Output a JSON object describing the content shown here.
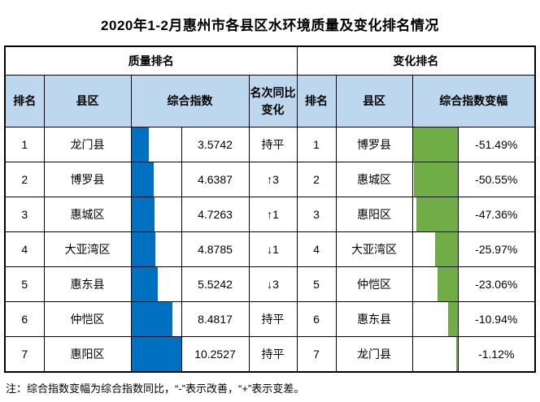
{
  "title": "2020年1-2月惠州市各县区水环境质量及变化排名情况",
  "note": "注：综合指数变幅为综合指数同比，“-”表示改善，“+”表示变差。",
  "colors": {
    "header_fill": "#BDD7EE",
    "quality_bar_blue": "#0070C0",
    "change_bar_green": "#70AD47",
    "border": "#000000"
  },
  "chart_data": {
    "type": "table",
    "title": "2020年1-2月惠州市各县区水环境质量及变化排名情况",
    "sections": [
      {
        "header": "质量排名",
        "columns": [
          "排名",
          "县区",
          "综合指数",
          "名次同比变化"
        ],
        "bar_color": "#0070C0",
        "bar_anchor": "left",
        "bar_scale_note": "bar length proportional to value, max 10.2527 = full cell",
        "rows": [
          {
            "rank": "1",
            "district": "龙门县",
            "value": "3.5742",
            "change": "持平"
          },
          {
            "rank": "2",
            "district": "博罗县",
            "value": "4.6387",
            "change": "↑3"
          },
          {
            "rank": "3",
            "district": "惠城区",
            "value": "4.7263",
            "change": "↑1"
          },
          {
            "rank": "4",
            "district": "大亚湾区",
            "value": "4.8785",
            "change": "↓1"
          },
          {
            "rank": "5",
            "district": "惠东县",
            "value": "5.5242",
            "change": "↓3"
          },
          {
            "rank": "6",
            "district": "仲恺区",
            "value": "8.4817",
            "change": "持平"
          },
          {
            "rank": "7",
            "district": "惠阳区",
            "value": "10.2527",
            "change": "持平"
          }
        ]
      },
      {
        "header": "变化排名",
        "columns": [
          "排名",
          "县区",
          "综合指数变幅"
        ],
        "bar_color": "#70AD47",
        "bar_anchor": "right",
        "bar_scale_note": "bar length proportional to |value|, max -51.49% = full cell",
        "rows": [
          {
            "rank": "1",
            "district": "博罗县",
            "value": "-51.49%"
          },
          {
            "rank": "2",
            "district": "惠城区",
            "value": "-50.55%"
          },
          {
            "rank": "3",
            "district": "惠阳区",
            "value": "-47.36%"
          },
          {
            "rank": "4",
            "district": "大亚湾区",
            "value": "-25.97%"
          },
          {
            "rank": "5",
            "district": "仲恺区",
            "value": "-23.06%"
          },
          {
            "rank": "6",
            "district": "惠东县",
            "value": "-10.94%"
          },
          {
            "rank": "7",
            "district": "龙门县",
            "value": "-1.12%"
          }
        ]
      }
    ]
  }
}
